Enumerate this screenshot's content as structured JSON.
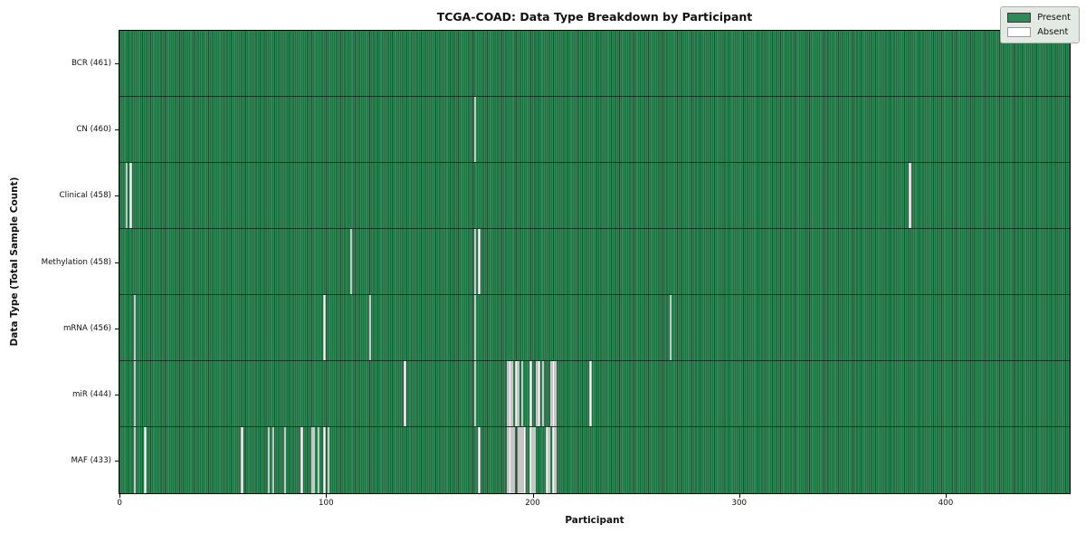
{
  "title": "TCGA-COAD: Data Type Breakdown by Participant",
  "xlabel": "Participant",
  "ylabel": "Data Type (Total Sample Count)",
  "legend": {
    "present_label": "Present",
    "absent_label": "Absent"
  },
  "colors": {
    "present": "#2e8b57",
    "present_edge": "#1a5130",
    "absent": "#ffffff",
    "absent_edge": "#c6c6c6",
    "plot_border": "#000000",
    "legend_bg": "#e3eae3"
  },
  "chart_data": {
    "type": "heatmap",
    "title": "TCGA-COAD: Data Type Breakdown by Participant",
    "xlabel": "Participant",
    "ylabel": "Data Type (Total Sample Count)",
    "legend": [
      "Present",
      "Absent"
    ],
    "legend_position": "upper right",
    "grid": false,
    "x_range": [
      0,
      461
    ],
    "x_ticks": [
      0,
      100,
      200,
      300,
      400
    ],
    "total_participants": 461,
    "rows": [
      {
        "data_type": "BCR",
        "label": "BCR (461)",
        "present_count": 461,
        "absent_participants": []
      },
      {
        "data_type": "CN",
        "label": "CN (460)",
        "present_count": 460,
        "absent_participants": [
          172
        ]
      },
      {
        "data_type": "Clinical",
        "label": "Clinical (458)",
        "present_count": 458,
        "absent_participants": [
          3,
          5,
          383
        ]
      },
      {
        "data_type": "Methylation",
        "label": "Methylation (458)",
        "present_count": 458,
        "absent_participants": [
          112,
          172,
          174
        ]
      },
      {
        "data_type": "mRNA",
        "label": "mRNA (456)",
        "present_count": 456,
        "absent_participants": [
          7,
          99,
          121,
          172,
          267
        ]
      },
      {
        "data_type": "miR",
        "label": "miR (444)",
        "present_count": 444,
        "absent_participants": [
          7,
          138,
          172,
          188,
          189,
          190,
          192,
          193,
          195,
          199,
          202,
          203,
          205,
          209,
          210,
          211,
          228
        ]
      },
      {
        "data_type": "MAF",
        "label": "MAF (433)",
        "present_count": 433,
        "absent_participants": [
          7,
          12,
          59,
          72,
          74,
          80,
          88,
          93,
          94,
          96,
          99,
          101,
          174,
          188,
          189,
          190,
          191,
          193,
          194,
          195,
          196,
          199,
          200,
          201,
          207,
          208,
          210,
          211
        ]
      }
    ]
  }
}
